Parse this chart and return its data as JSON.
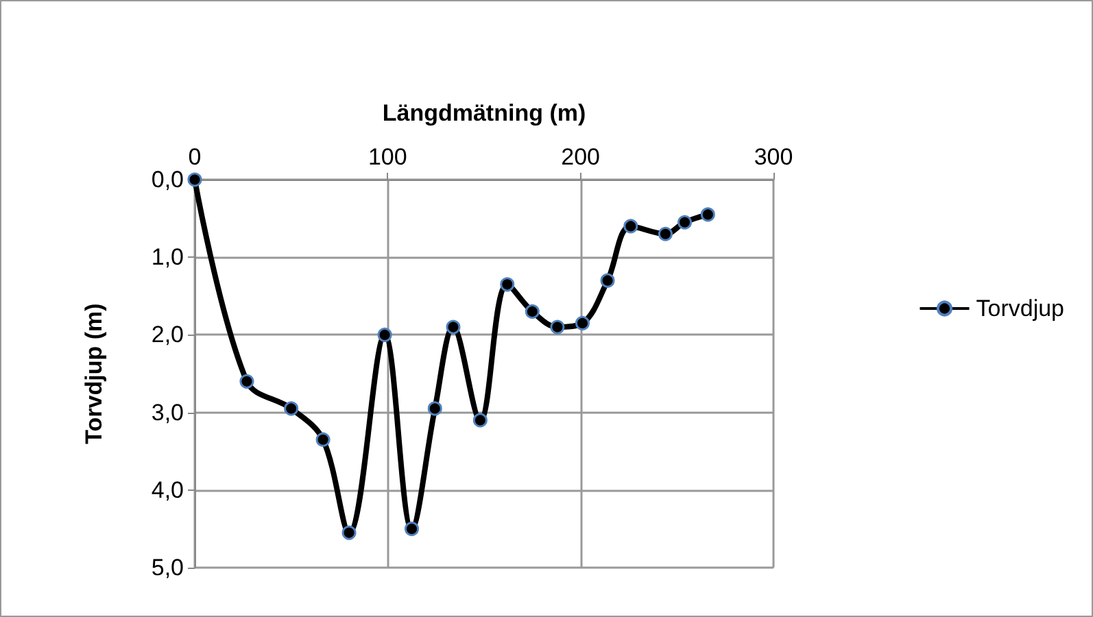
{
  "chart_data": {
    "type": "line",
    "xlabel": "Längdmätning (m)",
    "ylabel": "Torvdjup (m)",
    "xlim": [
      0,
      300
    ],
    "xticks": [
      0,
      100,
      200,
      300
    ],
    "ylim": [
      5,
      0
    ],
    "yticks": [
      {
        "value": 0,
        "label": "0,0"
      },
      {
        "value": 1,
        "label": "1,0"
      },
      {
        "value": 2,
        "label": "2,0"
      },
      {
        "value": 3,
        "label": "3,0"
      },
      {
        "value": 4,
        "label": "4,0"
      },
      {
        "value": 5,
        "label": "5,0"
      }
    ],
    "grid": true,
    "legend": "right",
    "marker": "circle",
    "line_style": "solid",
    "series": [
      {
        "name": "Torvdjup",
        "color": "#000000",
        "x": [
          0,
          27,
          50,
          66.5,
          80,
          98.5,
          112.5,
          124.5,
          134,
          148,
          162,
          175,
          188,
          201,
          214,
          226,
          244,
          254,
          266
        ],
        "values": [
          0,
          2.6,
          2.95,
          3.35,
          4.55,
          2.0,
          4.5,
          2.95,
          1.9,
          3.1,
          1.35,
          1.7,
          1.9,
          1.85,
          1.3,
          0.6,
          0.7,
          0.55,
          0.45
        ]
      }
    ]
  }
}
